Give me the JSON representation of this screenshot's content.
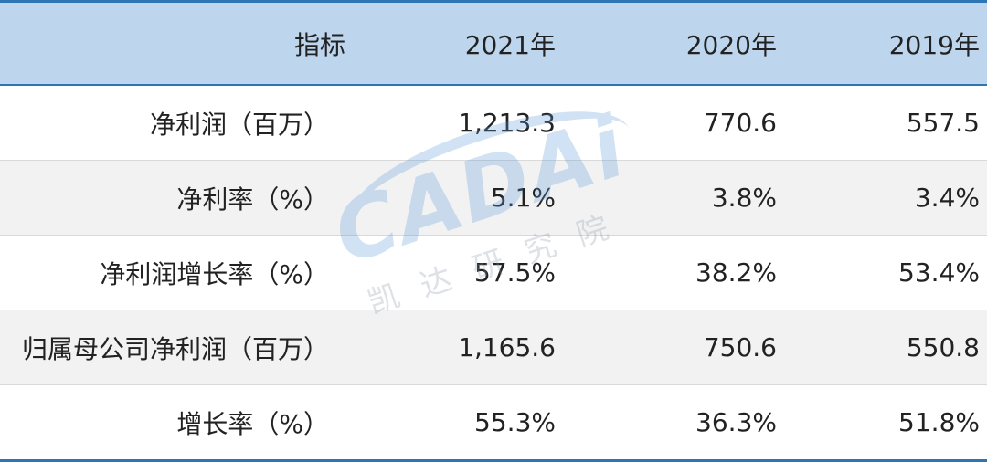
{
  "table": {
    "headers": [
      "指标",
      "2021年",
      "2020年",
      "2019年"
    ],
    "rows": [
      [
        "净利润（百万）",
        "1,213.3",
        "770.6",
        "557.5"
      ],
      [
        "净利率（%）",
        "5.1%",
        "3.8%",
        "3.4%"
      ],
      [
        "净利润增长率（%）",
        "57.5%",
        "38.2%",
        "53.4%"
      ],
      [
        "归属母公司净利润（百万）",
        "1,165.6",
        "750.6",
        "550.8"
      ],
      [
        "增长率（%）",
        "55.3%",
        "36.3%",
        "51.8%"
      ]
    ]
  },
  "watermark": {
    "logo": "CADAi",
    "text": "凯达研究院"
  },
  "colors": {
    "header_bg": "#bdd6ee",
    "border": "#2e75b6",
    "alt_row": "#f2f2f3"
  }
}
